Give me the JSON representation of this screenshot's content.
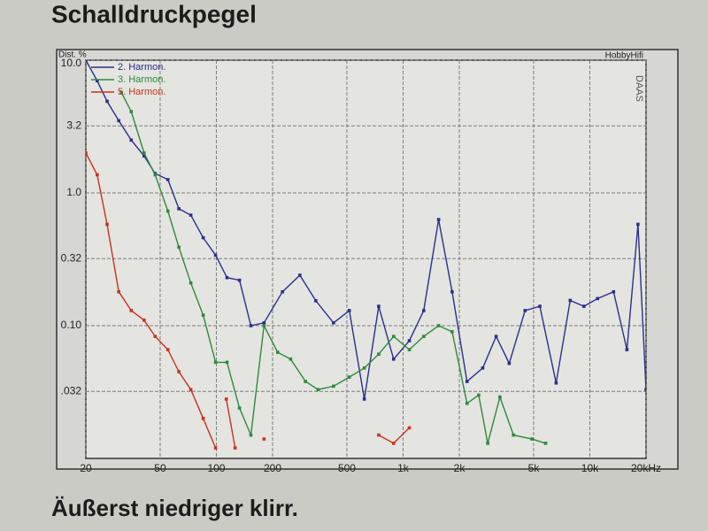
{
  "header": "Schalldruckpegel",
  "caption": "Äußerst niedriger klirr.",
  "chart_data": {
    "type": "line",
    "y_label": "Dist. %",
    "brand": "HobbyHifi",
    "stamp": "DAAS",
    "log_x": true,
    "log_y": true,
    "grid": true,
    "legend": "top-left",
    "xlim": [
      20,
      20000
    ],
    "ylim": [
      0.01,
      10
    ],
    "xticks": [
      20,
      50,
      100,
      200,
      500,
      {
        "value": 1000,
        "label": "1k"
      },
      {
        "value": 2000,
        "label": "2k"
      },
      {
        "value": 5000,
        "label": "5k"
      },
      {
        "value": 10000,
        "label": "10k"
      },
      {
        "value": 20000,
        "label": "20kHz"
      }
    ],
    "yticks": [
      {
        "value": 10,
        "label": "10.0"
      },
      3.2,
      {
        "value": 1,
        "label": "1.0"
      },
      0.32,
      {
        "value": 0.1,
        "label": "0.10"
      },
      {
        "value": 0.032,
        "label": ".032"
      }
    ],
    "series": [
      {
        "name": "2. Harmon.",
        "color": "#2c2f8c",
        "x": [
          20,
          23,
          26,
          30,
          35,
          41,
          47,
          55,
          63,
          73,
          85,
          99,
          114,
          133,
          153,
          180,
          226,
          280,
          341,
          424,
          515,
          620,
          740,
          890,
          1080,
          1290,
          1550,
          1830,
          2200,
          2670,
          3150,
          3700,
          4500,
          5400,
          6600,
          7850,
          9300,
          11000,
          13400,
          15800,
          18100,
          20000
        ],
        "values": [
          10,
          7.0,
          4.9,
          3.5,
          2.5,
          1.9,
          1.4,
          1.26,
          0.76,
          0.68,
          0.46,
          0.34,
          0.23,
          0.22,
          0.1,
          0.105,
          0.18,
          0.24,
          0.154,
          0.105,
          0.13,
          0.028,
          0.14,
          0.056,
          0.077,
          0.13,
          0.63,
          0.18,
          0.038,
          0.048,
          0.083,
          0.052,
          0.13,
          0.14,
          0.037,
          0.155,
          0.14,
          0.16,
          0.18,
          0.066,
          0.58,
          0.033
        ]
      },
      {
        "name": "3. Harmon.",
        "color": "#2f8a3a",
        "x": [
          31,
          35,
          41,
          47,
          55,
          63,
          73,
          85,
          99,
          114,
          133,
          153,
          180,
          213,
          250,
          300,
          350,
          424,
          515,
          620,
          740,
          890,
          1080,
          1290,
          1550,
          1830,
          2200,
          2540,
          2840,
          3300,
          3900,
          4900,
          5800
        ],
        "values": [
          5.7,
          4.1,
          2.0,
          1.37,
          0.73,
          0.39,
          0.21,
          0.12,
          0.053,
          0.053,
          0.024,
          0.015,
          0.1,
          0.063,
          0.056,
          0.038,
          0.033,
          0.035,
          0.041,
          0.048,
          0.061,
          0.083,
          0.066,
          0.083,
          0.1,
          0.09,
          0.026,
          0.03,
          0.013,
          0.029,
          0.015,
          0.014,
          0.013
        ]
      },
      {
        "name": "5. Harmon.",
        "color": "#c8321e",
        "x": [
          20,
          23,
          26,
          30,
          35,
          41,
          47,
          55,
          63,
          73,
          85,
          99,
          105,
          113,
          126,
          150,
          180,
          600,
          740,
          890,
          1080
        ],
        "values": [
          2.0,
          1.37,
          0.58,
          0.18,
          0.13,
          0.11,
          0.083,
          0.066,
          0.045,
          0.033,
          0.02,
          0.012,
          null,
          0.028,
          0.012,
          null,
          0.014,
          null,
          0.015,
          0.013,
          0.017
        ]
      }
    ]
  }
}
